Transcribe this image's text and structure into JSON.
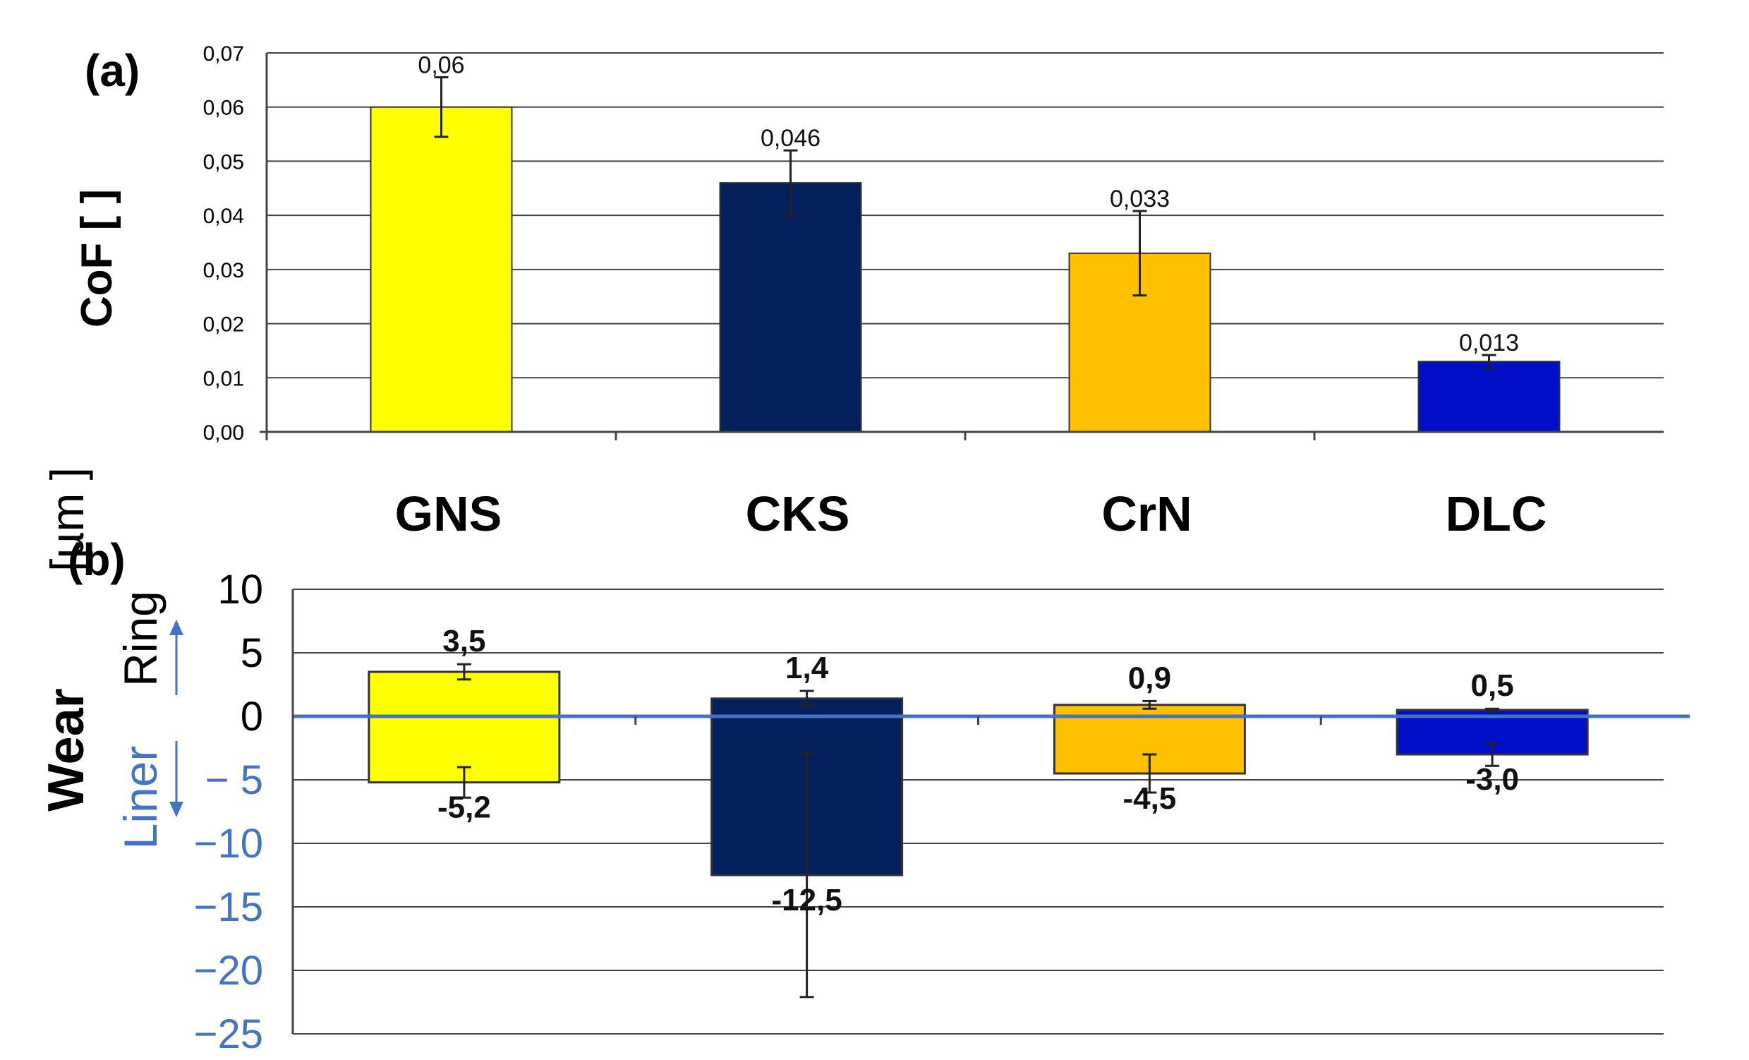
{
  "chart_data": [
    {
      "panel_label": "(a)",
      "type": "bar",
      "ylabel": "CoF [ ]",
      "categories": [
        "GNS",
        "CKS",
        "CrN",
        "DLC"
      ],
      "values": [
        0.06,
        0.046,
        0.033,
        0.013
      ],
      "value_labels": [
        "0,06",
        "0,046",
        "0,033",
        "0,013"
      ],
      "error": [
        0.0055,
        0.006,
        0.0078,
        0.0012
      ],
      "colors": [
        "#ffff00",
        "#03205c",
        "#ffc000",
        "#0010c8"
      ],
      "ylim": [
        0,
        0.07
      ],
      "yticks": [
        0,
        0.01,
        0.02,
        0.03,
        0.04,
        0.05,
        0.06,
        0.07
      ],
      "ytick_labels": [
        "0,00",
        "0,01",
        "0,02",
        "0,03",
        "0,04",
        "0,05",
        "0,06",
        "0,07"
      ],
      "grid": true
    },
    {
      "panel_label": "(b)",
      "type": "bar",
      "ylabel_parts": [
        "Wear",
        "[µm ]"
      ],
      "ring_label": "Ring",
      "liner_label": "Liner",
      "categories": [
        "GNS",
        "CKS",
        "CrN",
        "DLC"
      ],
      "series": [
        {
          "values": [
            3.5,
            1.4,
            0.9,
            0.5
          ],
          "labels": [
            "3,5",
            "1,4",
            "0,9",
            "0,5"
          ],
          "error": [
            0.6,
            0.6,
            0.3,
            0.1
          ]
        },
        {
          "values": [
            -5.2,
            -12.5,
            -4.5,
            -3.0
          ],
          "labels": [
            "-5,2",
            "-12,5",
            "-4,5",
            "-3,0"
          ],
          "error": [
            1.2,
            9.6,
            1.5,
            0.9
          ]
        }
      ],
      "colors": [
        "#ffff00",
        "#03205c",
        "#ffc000",
        "#0010c8"
      ],
      "ylim": [
        -25,
        10
      ],
      "yticks": [
        10,
        5,
        0,
        -5,
        -10,
        -15,
        -20,
        -25
      ],
      "ytick_labels": [
        "10",
        "5",
        "0",
        "− 5",
        "−10",
        "−15",
        "−20",
        "−25"
      ],
      "zero_line_color": "#4472c4",
      "grid": true
    }
  ]
}
